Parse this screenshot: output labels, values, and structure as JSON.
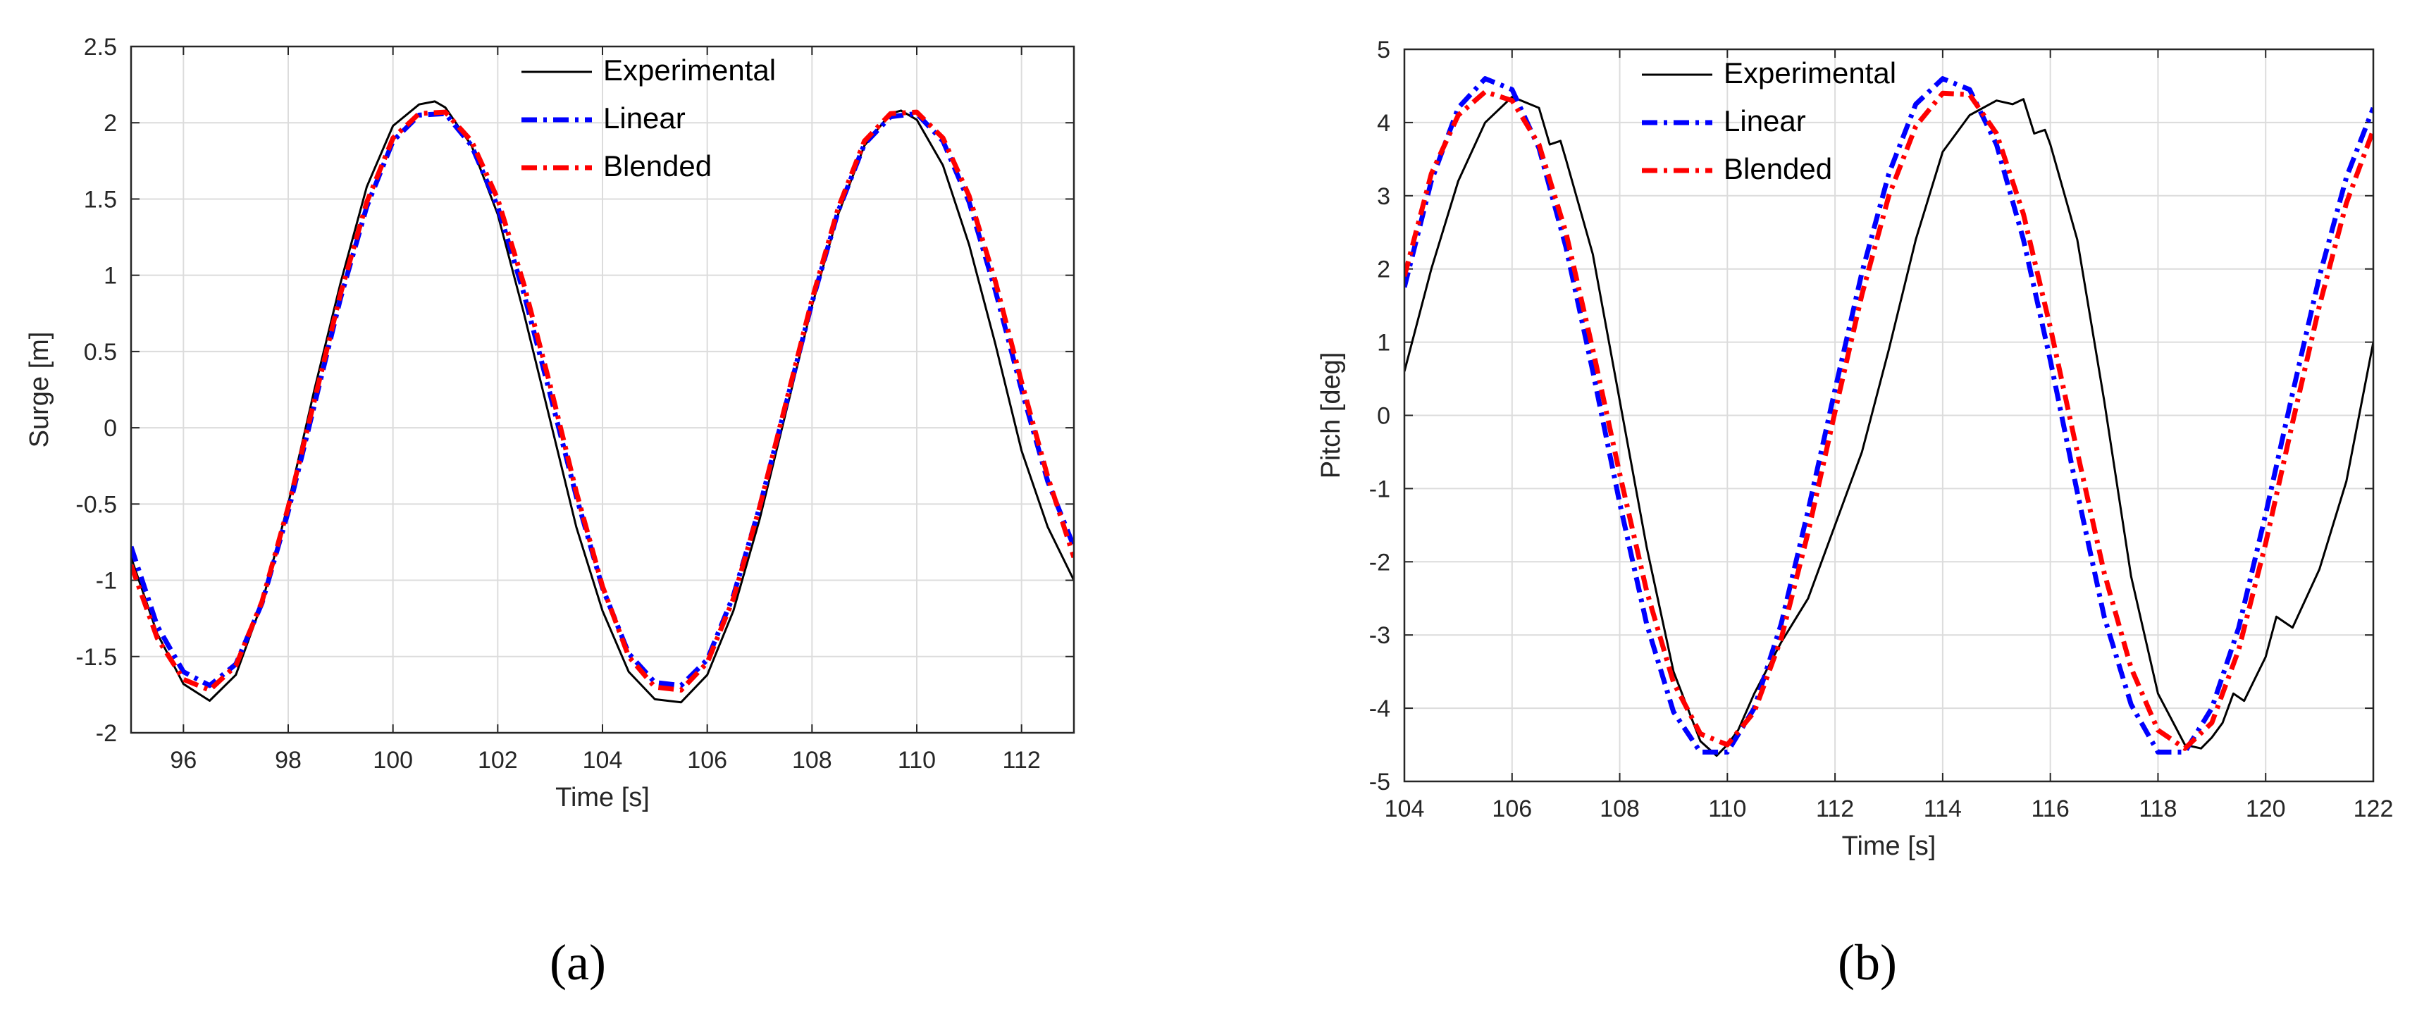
{
  "chart_data": [
    {
      "type": "line",
      "panel_label": "(a)",
      "title": "",
      "xlabel": "Time [s]",
      "ylabel": "Surge [m]",
      "xlim": [
        95,
        113
      ],
      "ylim": [
        -2,
        2.5
      ],
      "xticks": [
        96,
        98,
        100,
        102,
        104,
        106,
        108,
        110,
        112
      ],
      "yticks": [
        -2,
        -1.5,
        -1,
        -0.5,
        0,
        0.5,
        1,
        1.5,
        2,
        2.5
      ],
      "xtick_labels": [
        "96",
        "98",
        "100",
        "102",
        "104",
        "106",
        "108",
        "110",
        "112"
      ],
      "ytick_labels": [
        "-2",
        "-1.5",
        "-1",
        "-0.5",
        "0",
        "0.5",
        "1",
        "1.5",
        "2",
        "2.5"
      ],
      "grid": true,
      "legend_position": "top-center",
      "series": [
        {
          "name": "Experimental",
          "color": "#000000",
          "style": "solid",
          "x": [
            95.0,
            95.5,
            96.0,
            96.5,
            97.0,
            97.5,
            98.0,
            98.5,
            99.0,
            99.5,
            100.0,
            100.5,
            100.8,
            101.0,
            101.5,
            102.0,
            102.5,
            103.0,
            103.5,
            104.0,
            104.5,
            105.0,
            105.5,
            106.0,
            106.5,
            107.0,
            107.5,
            108.0,
            108.5,
            109.0,
            109.5,
            109.7,
            110.0,
            110.5,
            111.0,
            111.5,
            112.0,
            112.5,
            113.0
          ],
          "y": [
            -0.85,
            -1.35,
            -1.68,
            -1.79,
            -1.62,
            -1.15,
            -0.5,
            0.25,
            0.95,
            1.58,
            1.98,
            2.12,
            2.14,
            2.1,
            1.85,
            1.4,
            0.75,
            0.05,
            -0.65,
            -1.2,
            -1.6,
            -1.78,
            -1.8,
            -1.62,
            -1.2,
            -0.6,
            0.1,
            0.8,
            1.4,
            1.85,
            2.06,
            2.08,
            2.02,
            1.72,
            1.2,
            0.55,
            -0.15,
            -0.65,
            -1.0
          ]
        },
        {
          "name": "Linear",
          "color": "#0000ff",
          "style": "dashdot",
          "x": [
            95.0,
            95.5,
            96.0,
            96.5,
            97.0,
            97.5,
            98.0,
            98.5,
            99.0,
            99.5,
            100.0,
            100.5,
            101.0,
            101.5,
            102.0,
            102.5,
            103.0,
            103.5,
            104.0,
            104.5,
            105.0,
            105.5,
            106.0,
            106.5,
            107.0,
            107.5,
            108.0,
            108.5,
            109.0,
            109.5,
            110.0,
            110.5,
            111.0,
            111.5,
            112.0,
            112.5,
            113.0
          ],
          "y": [
            -0.78,
            -1.3,
            -1.6,
            -1.69,
            -1.55,
            -1.15,
            -0.55,
            0.15,
            0.85,
            1.45,
            1.88,
            2.05,
            2.06,
            1.85,
            1.45,
            0.88,
            0.22,
            -0.45,
            -1.05,
            -1.48,
            -1.67,
            -1.69,
            -1.52,
            -1.1,
            -0.52,
            0.15,
            0.82,
            1.42,
            1.86,
            2.04,
            2.06,
            1.88,
            1.48,
            0.9,
            0.25,
            -0.35,
            -0.78
          ]
        },
        {
          "name": "Blended",
          "color": "#ff0000",
          "style": "dashdot",
          "x": [
            95.0,
            95.5,
            96.0,
            96.5,
            97.0,
            97.5,
            98.0,
            98.5,
            99.0,
            99.5,
            100.0,
            100.5,
            101.0,
            101.5,
            102.0,
            102.5,
            103.0,
            103.5,
            104.0,
            104.5,
            105.0,
            105.5,
            106.0,
            106.5,
            107.0,
            107.5,
            108.0,
            108.5,
            109.0,
            109.5,
            110.0,
            110.5,
            111.0,
            111.5,
            112.0,
            112.5,
            113.0
          ],
          "y": [
            -0.9,
            -1.38,
            -1.65,
            -1.72,
            -1.56,
            -1.14,
            -0.52,
            0.18,
            0.88,
            1.48,
            1.9,
            2.06,
            2.07,
            1.88,
            1.5,
            0.94,
            0.28,
            -0.42,
            -1.04,
            -1.5,
            -1.7,
            -1.72,
            -1.54,
            -1.12,
            -0.52,
            0.16,
            0.84,
            1.44,
            1.88,
            2.06,
            2.07,
            1.9,
            1.52,
            0.96,
            0.3,
            -0.32,
            -0.85
          ]
        }
      ]
    },
    {
      "type": "line",
      "panel_label": "(b)",
      "title": "",
      "xlabel": "Time [s]",
      "ylabel": "Pitch [deg]",
      "xlim": [
        104,
        122
      ],
      "ylim": [
        -5,
        5
      ],
      "xticks": [
        104,
        106,
        108,
        110,
        112,
        114,
        116,
        118,
        120,
        122
      ],
      "yticks": [
        -5,
        -4,
        -3,
        -2,
        -1,
        0,
        1,
        2,
        3,
        4,
        5
      ],
      "xtick_labels": [
        "104",
        "106",
        "108",
        "110",
        "112",
        "114",
        "116",
        "118",
        "120",
        "122"
      ],
      "ytick_labels": [
        "-5",
        "-4",
        "-3",
        "-2",
        "-1",
        "0",
        "1",
        "2",
        "3",
        "4",
        "5"
      ],
      "grid": true,
      "legend_position": "top-center",
      "series": [
        {
          "name": "Experimental",
          "color": "#000000",
          "style": "solid",
          "x": [
            104.0,
            104.5,
            105.0,
            105.5,
            106.0,
            106.5,
            106.7,
            106.9,
            107.0,
            107.5,
            108.0,
            108.5,
            109.0,
            109.5,
            109.8,
            110.0,
            110.2,
            110.5,
            111.0,
            111.5,
            112.0,
            112.5,
            113.0,
            113.5,
            114.0,
            114.5,
            115.0,
            115.3,
            115.5,
            115.7,
            115.9,
            116.0,
            116.5,
            117.0,
            117.5,
            118.0,
            118.5,
            118.8,
            119.0,
            119.2,
            119.4,
            119.6,
            119.8,
            120.0,
            120.2,
            120.5,
            121.0,
            121.5,
            122.0
          ],
          "y": [
            0.6,
            2.0,
            3.2,
            4.0,
            4.35,
            4.2,
            3.7,
            3.75,
            3.5,
            2.2,
            0.2,
            -1.8,
            -3.5,
            -4.45,
            -4.65,
            -4.5,
            -4.3,
            -3.8,
            -3.1,
            -2.5,
            -1.5,
            -0.5,
            0.9,
            2.4,
            3.6,
            4.1,
            4.3,
            4.25,
            4.32,
            3.85,
            3.9,
            3.7,
            2.4,
            0.2,
            -2.2,
            -3.8,
            -4.5,
            -4.55,
            -4.4,
            -4.2,
            -3.8,
            -3.9,
            -3.6,
            -3.3,
            -2.75,
            -2.9,
            -2.1,
            -0.9,
            1.0
          ]
        },
        {
          "name": "Linear",
          "color": "#0000ff",
          "style": "dashdot",
          "x": [
            104.0,
            104.5,
            105.0,
            105.5,
            106.0,
            106.5,
            107.0,
            107.5,
            108.0,
            108.5,
            109.0,
            109.5,
            110.0,
            110.5,
            111.0,
            111.5,
            112.0,
            112.5,
            113.0,
            113.5,
            114.0,
            114.5,
            115.0,
            115.5,
            116.0,
            116.5,
            117.0,
            117.5,
            118.0,
            118.5,
            119.0,
            119.5,
            120.0,
            120.5,
            121.0,
            121.5,
            122.0
          ],
          "y": [
            1.75,
            3.2,
            4.2,
            4.6,
            4.45,
            3.65,
            2.3,
            0.6,
            -1.2,
            -2.85,
            -4.05,
            -4.6,
            -4.6,
            -4.0,
            -2.85,
            -1.3,
            0.35,
            1.95,
            3.3,
            4.25,
            4.6,
            4.45,
            3.7,
            2.4,
            0.75,
            -1.05,
            -2.75,
            -3.95,
            -4.6,
            -4.6,
            -4.0,
            -2.9,
            -1.35,
            0.3,
            1.9,
            3.25,
            4.2
          ]
        },
        {
          "name": "Blended",
          "color": "#ff0000",
          "style": "dashdot",
          "x": [
            104.0,
            104.5,
            105.0,
            105.5,
            106.0,
            106.5,
            107.0,
            107.5,
            108.0,
            108.5,
            109.0,
            109.5,
            110.0,
            110.5,
            111.0,
            111.5,
            112.0,
            112.5,
            113.0,
            113.5,
            114.0,
            114.5,
            115.0,
            115.5,
            116.0,
            116.5,
            117.0,
            117.5,
            118.0,
            118.5,
            119.0,
            119.5,
            120.0,
            120.5,
            121.0,
            121.5,
            122.0
          ],
          "y": [
            1.9,
            3.3,
            4.1,
            4.42,
            4.3,
            3.7,
            2.5,
            0.9,
            -0.8,
            -2.4,
            -3.65,
            -4.35,
            -4.5,
            -4.05,
            -3.05,
            -1.6,
            0.05,
            1.65,
            3.0,
            3.95,
            4.4,
            4.38,
            3.85,
            2.75,
            1.2,
            -0.5,
            -2.15,
            -3.45,
            -4.3,
            -4.55,
            -4.2,
            -3.2,
            -1.75,
            -0.1,
            1.5,
            2.9,
            3.9
          ]
        }
      ]
    }
  ]
}
